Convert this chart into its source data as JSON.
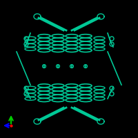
{
  "background_color": "#000000",
  "protein_color": "#00c896",
  "axis_x_color": "#0000ff",
  "axis_y_color": "#00cc00",
  "axis_origin_color": "#ff0000",
  "figsize": [
    2.0,
    2.0
  ],
  "dpi": 100
}
